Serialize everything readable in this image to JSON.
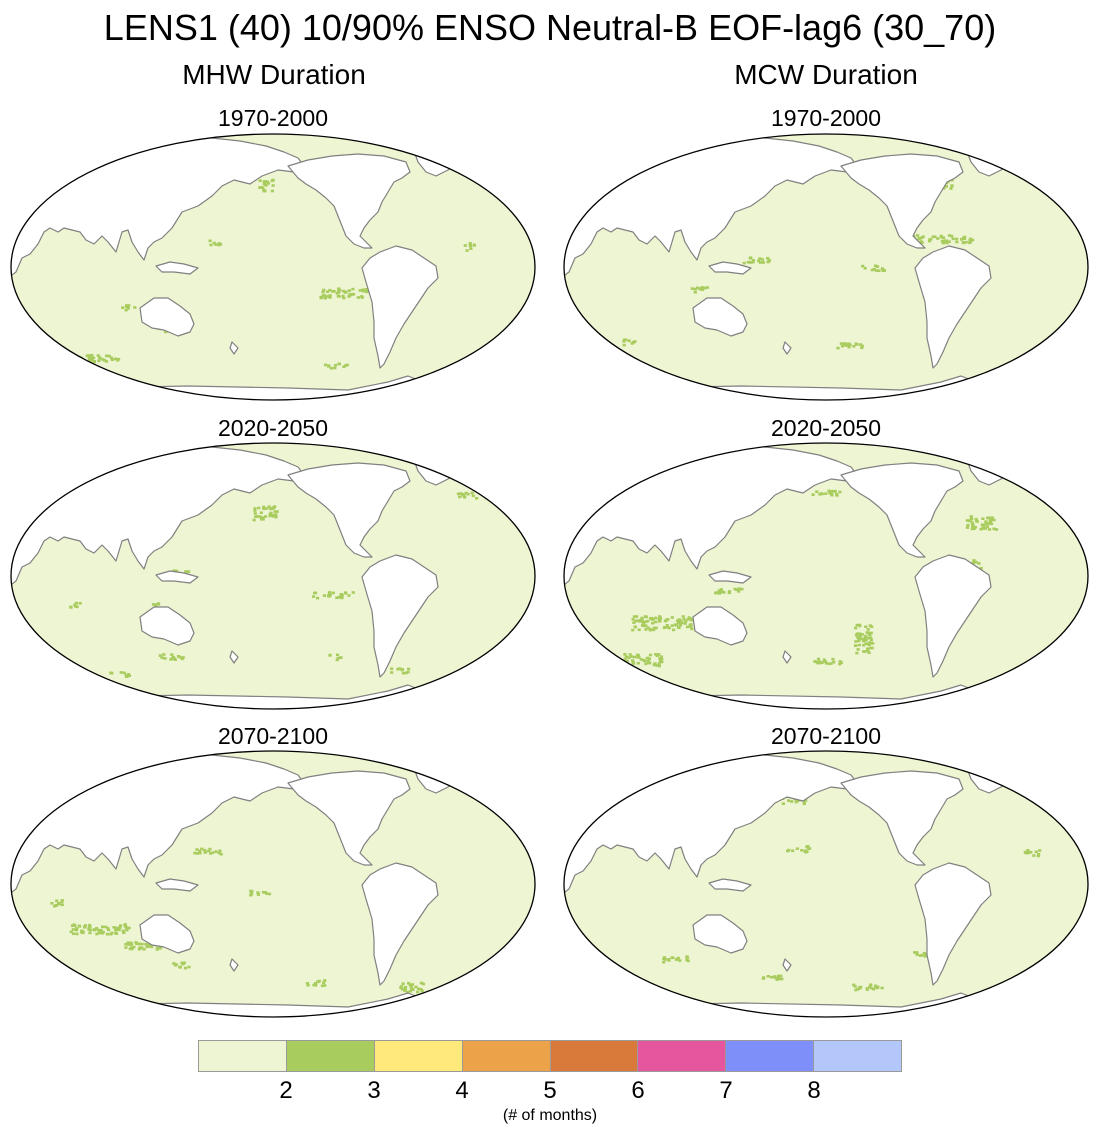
{
  "title": "LENS1 (40) 10/90% ENSO Neutral-B EOF-lag6 (30_70)",
  "columns": [
    {
      "title": "MHW Duration"
    },
    {
      "title": "MCW Duration"
    }
  ],
  "panels": [
    {
      "period": "1970-2000",
      "variable": "MHW Duration"
    },
    {
      "period": "1970-2000",
      "variable": "MCW Duration"
    },
    {
      "period": "2020-2050",
      "variable": "MHW Duration"
    },
    {
      "period": "2020-2050",
      "variable": "MCW Duration"
    },
    {
      "period": "2070-2100",
      "variable": "MHW Duration"
    },
    {
      "period": "2070-2100",
      "variable": "MCW Duration"
    }
  ],
  "colorbar": {
    "labels": [
      "2",
      "3",
      "4",
      "5",
      "6",
      "7",
      "8"
    ],
    "units": "(# of months)",
    "colors": [
      "#edf5d3",
      "#a9cc5e",
      "#ffe97a",
      "#eba249",
      "#d9793a",
      "#e5569e",
      "#7f8ffa",
      "#b3c7fb"
    ]
  },
  "map_colors": {
    "ocean": "#edf5d3",
    "anomaly": "#a9cc5e",
    "land": "#ffffff",
    "coast": "#808080"
  }
}
